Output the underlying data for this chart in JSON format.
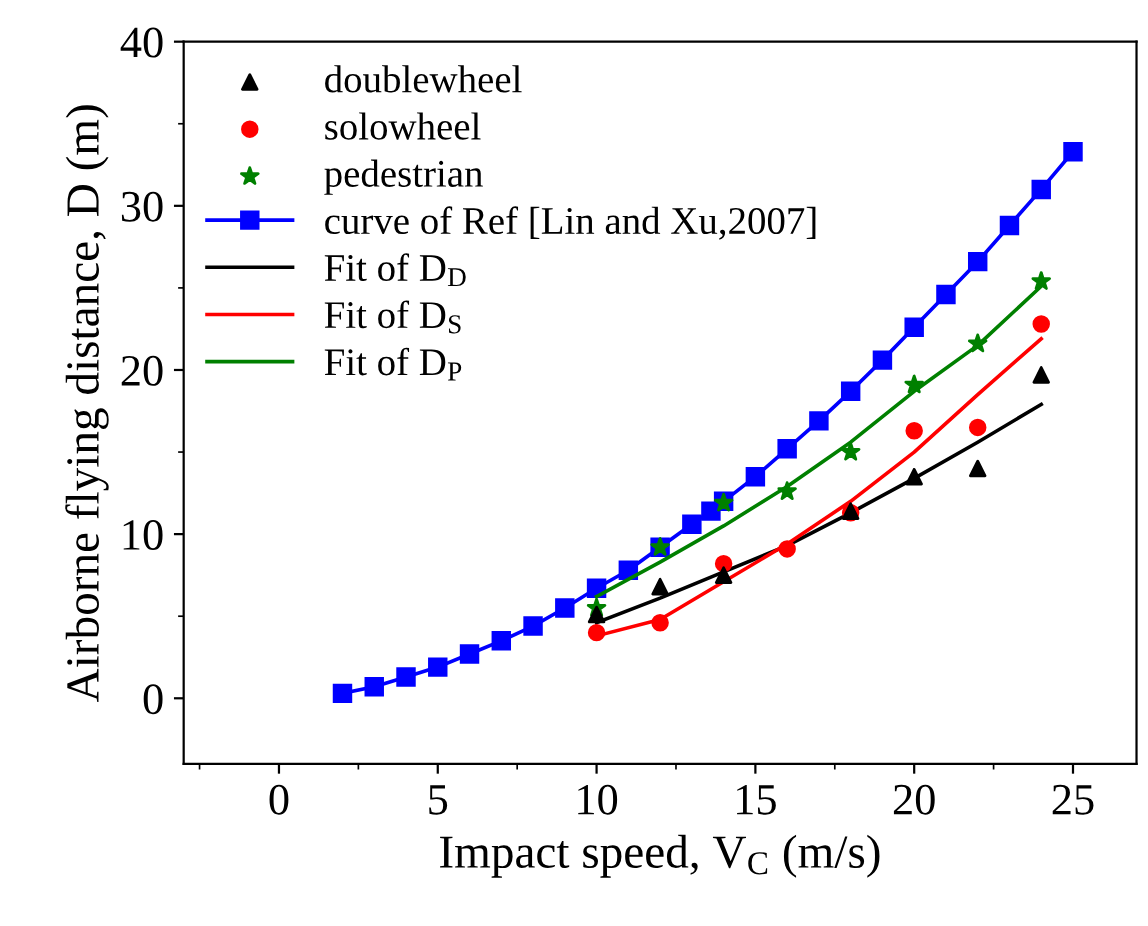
{
  "chart_data": {
    "type": "scatter",
    "xlabel": "Impact speed, V$_{C}$ (m/s)",
    "ylabel": "Airborne flying distance, D (m)",
    "xlim": [
      -3,
      27
    ],
    "xticks": [
      0,
      5,
      10,
      15,
      20,
      25
    ],
    "ylim": [
      -4,
      40
    ],
    "yticks": [
      0,
      10,
      20,
      30,
      40
    ],
    "grid": false,
    "legend": "top left",
    "series": [
      {
        "name": "doublewheel",
        "marker": "triangle",
        "color": "#000000",
        "x": [
          10,
          12,
          14,
          18,
          20,
          22,
          24
        ],
        "values": [
          5.1,
          6.8,
          7.5,
          11.4,
          13.5,
          14.0,
          19.7
        ]
      },
      {
        "name": "solowheel",
        "marker": "circle",
        "color": "#ff0000",
        "x": [
          10,
          12,
          14,
          16,
          18,
          20,
          22,
          24
        ],
        "values": [
          4.0,
          4.6,
          8.2,
          9.1,
          11.3,
          16.3,
          16.5,
          22.8
        ]
      },
      {
        "name": "pedestrian",
        "marker": "star",
        "color": "#008000",
        "x": [
          10,
          12,
          14,
          16,
          18,
          20,
          22,
          24
        ],
        "values": [
          5.5,
          9.2,
          11.9,
          12.6,
          15.0,
          19.1,
          21.6,
          25.4
        ]
      },
      {
        "name": "curve of Ref [Lin and Xu,2007]",
        "type": "line",
        "marker": "square",
        "color": "#0000ff",
        "x": [
          2,
          3,
          4,
          5,
          6,
          7,
          8,
          9,
          10,
          11,
          12,
          13,
          13.6,
          14,
          15,
          16,
          17,
          18,
          19,
          20,
          21,
          22,
          23,
          24,
          25
        ],
        "values": [
          0.3,
          0.7,
          1.3,
          1.9,
          2.7,
          3.5,
          4.4,
          5.5,
          6.7,
          7.8,
          9.2,
          10.6,
          11.4,
          12.0,
          13.5,
          15.2,
          16.9,
          18.7,
          20.6,
          22.6,
          24.6,
          26.6,
          28.8,
          31.0,
          33.3
        ]
      },
      {
        "name": "Fit of D$_{D}$",
        "type": "line",
        "marker": "none",
        "color": "#000000",
        "x": [
          10,
          12,
          14,
          16,
          18,
          20,
          22,
          24
        ],
        "values": [
          4.6,
          6.1,
          7.7,
          9.3,
          11.3,
          13.4,
          15.6,
          17.9
        ]
      },
      {
        "name": "Fit of D$_{S}$",
        "type": "line",
        "marker": "none",
        "color": "#ff0000",
        "x": [
          10,
          12,
          14,
          16,
          18,
          20,
          22,
          24
        ],
        "values": [
          3.8,
          4.8,
          7.1,
          9.4,
          12.0,
          15.0,
          18.5,
          21.9
        ]
      },
      {
        "name": "Fit of D$_{P}$",
        "type": "line",
        "marker": "none",
        "color": "#008000",
        "x": [
          10,
          12,
          14,
          16,
          18,
          20,
          22,
          24
        ],
        "values": [
          6.2,
          8.3,
          10.5,
          12.9,
          15.6,
          18.7,
          21.5,
          25.1
        ]
      }
    ]
  }
}
